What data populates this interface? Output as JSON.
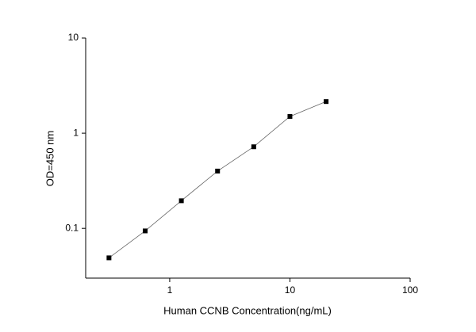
{
  "chart_data": {
    "type": "line",
    "x_label": "Human CCNB Concentration(ng/mL)",
    "y_label": "OD=450 nm",
    "x": [
      0.3125,
      0.625,
      1.25,
      2.5,
      5,
      10,
      20
    ],
    "series": [
      {
        "color": "#000000",
        "values": [
          0.049,
          0.094,
          0.195,
          0.4,
          0.72,
          1.5,
          2.15
        ]
      }
    ],
    "xlim": [
      0.2,
      100
    ],
    "ylim": [
      0.03,
      10
    ],
    "xticks": [
      1,
      10,
      100
    ],
    "yticks": [
      0.1,
      1,
      10
    ],
    "xscale": "log",
    "yscale": "log",
    "grid": false
  }
}
